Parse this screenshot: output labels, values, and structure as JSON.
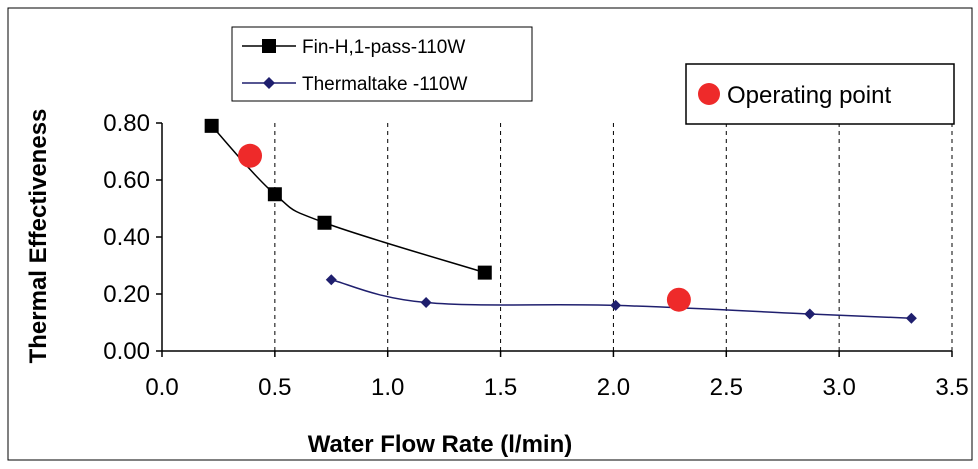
{
  "chart_data": {
    "type": "line",
    "xlabel": "Water Flow Rate (l/min)",
    "ylabel": "Thermal Effectiveness",
    "xlim": [
      0.0,
      3.5
    ],
    "ylim": [
      0.0,
      0.8
    ],
    "x_ticks": [
      "0.0",
      "0.5",
      "1.0",
      "1.5",
      "2.0",
      "2.5",
      "3.0",
      "3.5"
    ],
    "y_ticks": [
      "0.00",
      "0.20",
      "0.40",
      "0.60",
      "0.80"
    ],
    "grid": "vertical dashed",
    "series": [
      {
        "name": "Fin-H,1-pass-110W",
        "color": "#000000",
        "marker": "square",
        "x": [
          0.22,
          0.5,
          0.72,
          1.43
        ],
        "y": [
          0.79,
          0.55,
          0.45,
          0.275
        ]
      },
      {
        "name": "Thermaltake -110W",
        "color": "#1f1f6e",
        "marker": "diamond",
        "x": [
          0.75,
          1.17,
          2.01,
          2.87,
          3.32
        ],
        "y": [
          0.25,
          0.17,
          0.16,
          0.13,
          0.115
        ]
      }
    ],
    "operating_points": [
      {
        "x": 0.39,
        "y": 0.685
      },
      {
        "x": 2.29,
        "y": 0.18
      }
    ],
    "annotation": {
      "label": "Operating point",
      "color": "#ee2a2a"
    },
    "legend_position": "top-left"
  }
}
